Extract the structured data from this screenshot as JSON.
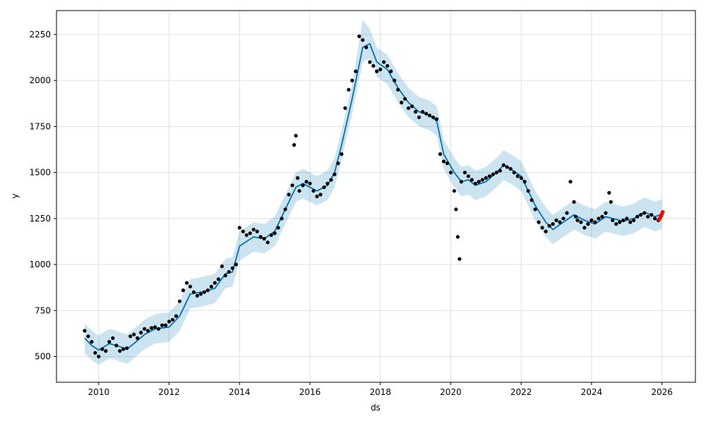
{
  "chart_data": {
    "type": "line",
    "title": "",
    "xlabel": "ds",
    "ylabel": "y",
    "xlim": [
      2008.8,
      2026.95
    ],
    "ylim": [
      360,
      2380
    ],
    "x_ticks": [
      2010,
      2012,
      2014,
      2016,
      2018,
      2020,
      2022,
      2024,
      2026
    ],
    "y_ticks": [
      500,
      750,
      1000,
      1250,
      1500,
      1750,
      2000,
      2250
    ],
    "grid": true,
    "colors": {
      "forecast": "#0072B2",
      "uncertainty_band": "#0072B2",
      "observed": "#000000",
      "new_points": "#ff0000"
    },
    "series": [
      {
        "kind": "forecast_line",
        "x": [
          2009.6,
          2009.8,
          2010.0,
          2010.3,
          2010.5,
          2010.8,
          2011.0,
          2011.3,
          2011.6,
          2012.0,
          2012.3,
          2012.6,
          2012.9,
          2013.3,
          2013.6,
          2013.8,
          2014.0,
          2014.4,
          2014.7,
          2015.0,
          2015.3,
          2015.6,
          2015.8,
          2016.2,
          2016.5,
          2016.7,
          2016.9,
          2017.2,
          2017.5,
          2017.7,
          2017.9,
          2018.2,
          2018.5,
          2018.8,
          2019.1,
          2019.4,
          2019.6,
          2019.8,
          2020.1,
          2020.3,
          2020.5,
          2020.7,
          2021.0,
          2021.3,
          2021.5,
          2021.7,
          2022.0,
          2022.2,
          2022.4,
          2022.7,
          2022.9,
          2023.2,
          2023.5,
          2023.8,
          2024.1,
          2024.4,
          2024.6,
          2024.9,
          2025.2,
          2025.5,
          2025.8,
          2026.0
        ],
        "y": [
          600,
          560,
          535,
          570,
          560,
          540,
          570,
          620,
          650,
          660,
          720,
          840,
          850,
          870,
          950,
          960,
          1100,
          1150,
          1140,
          1180,
          1300,
          1420,
          1440,
          1400,
          1430,
          1500,
          1650,
          1900,
          2180,
          2200,
          2100,
          2060,
          1960,
          1880,
          1830,
          1810,
          1780,
          1600,
          1500,
          1450,
          1460,
          1430,
          1450,
          1500,
          1540,
          1520,
          1480,
          1400,
          1320,
          1230,
          1190,
          1230,
          1270,
          1240,
          1220,
          1260,
          1250,
          1235,
          1250,
          1285,
          1260,
          1275
        ]
      },
      {
        "kind": "uncertainty_upper",
        "x": [
          2009.6,
          2009.8,
          2010.0,
          2010.3,
          2010.5,
          2010.8,
          2011.0,
          2011.3,
          2011.6,
          2012.0,
          2012.3,
          2012.6,
          2012.9,
          2013.3,
          2013.6,
          2013.8,
          2014.0,
          2014.4,
          2014.7,
          2015.0,
          2015.3,
          2015.6,
          2015.8,
          2016.2,
          2016.5,
          2016.7,
          2016.9,
          2017.2,
          2017.5,
          2017.7,
          2017.9,
          2018.2,
          2018.5,
          2018.8,
          2019.1,
          2019.4,
          2019.6,
          2019.8,
          2020.1,
          2020.3,
          2020.5,
          2020.7,
          2021.0,
          2021.3,
          2021.5,
          2021.7,
          2022.0,
          2022.2,
          2022.4,
          2022.7,
          2022.9,
          2023.2,
          2023.5,
          2023.8,
          2024.1,
          2024.4,
          2024.6,
          2024.9,
          2025.2,
          2025.5,
          2025.8,
          2026.0
        ],
        "y": [
          680,
          640,
          615,
          650,
          640,
          620,
          650,
          700,
          730,
          740,
          800,
          920,
          930,
          950,
          1030,
          1040,
          1180,
          1230,
          1220,
          1260,
          1380,
          1500,
          1520,
          1480,
          1510,
          1580,
          1730,
          1980,
          2330,
          2280,
          2180,
          2140,
          2040,
          1960,
          1910,
          1890,
          1860,
          1680,
          1580,
          1530,
          1540,
          1510,
          1530,
          1580,
          1620,
          1600,
          1560,
          1480,
          1400,
          1310,
          1270,
          1310,
          1350,
          1320,
          1300,
          1340,
          1330,
          1315,
          1330,
          1365,
          1340,
          1355
        ]
      },
      {
        "kind": "uncertainty_lower",
        "x": [
          2009.6,
          2009.8,
          2010.0,
          2010.3,
          2010.5,
          2010.8,
          2011.0,
          2011.3,
          2011.6,
          2012.0,
          2012.3,
          2012.6,
          2012.9,
          2013.3,
          2013.6,
          2013.8,
          2014.0,
          2014.4,
          2014.7,
          2015.0,
          2015.3,
          2015.6,
          2015.8,
          2016.2,
          2016.5,
          2016.7,
          2016.9,
          2017.2,
          2017.5,
          2017.7,
          2017.9,
          2018.2,
          2018.5,
          2018.8,
          2019.1,
          2019.4,
          2019.6,
          2019.8,
          2020.1,
          2020.3,
          2020.5,
          2020.7,
          2021.0,
          2021.3,
          2021.5,
          2021.7,
          2022.0,
          2022.2,
          2022.4,
          2022.7,
          2022.9,
          2023.2,
          2023.5,
          2023.8,
          2024.1,
          2024.4,
          2024.6,
          2024.9,
          2025.2,
          2025.5,
          2025.8,
          2026.0
        ],
        "y": [
          520,
          480,
          455,
          490,
          480,
          460,
          490,
          540,
          570,
          580,
          640,
          760,
          770,
          790,
          870,
          880,
          1020,
          1070,
          1060,
          1100,
          1220,
          1340,
          1360,
          1320,
          1350,
          1420,
          1570,
          1820,
          2100,
          2120,
          2020,
          1980,
          1880,
          1800,
          1750,
          1730,
          1700,
          1520,
          1420,
          1370,
          1380,
          1350,
          1370,
          1420,
          1460,
          1440,
          1400,
          1320,
          1240,
          1150,
          1110,
          1150,
          1190,
          1160,
          1140,
          1180,
          1170,
          1155,
          1170,
          1205,
          1180,
          1195
        ]
      },
      {
        "kind": "observed_points",
        "x": [
          2009.6,
          2009.7,
          2009.8,
          2009.9,
          2010.0,
          2010.1,
          2010.2,
          2010.3,
          2010.4,
          2010.5,
          2010.6,
          2010.7,
          2010.8,
          2010.9,
          2011.0,
          2011.1,
          2011.2,
          2011.3,
          2011.4,
          2011.5,
          2011.6,
          2011.7,
          2011.8,
          2011.9,
          2012.0,
          2012.1,
          2012.2,
          2012.3,
          2012.4,
          2012.5,
          2012.6,
          2012.7,
          2012.8,
          2012.9,
          2013.0,
          2013.1,
          2013.2,
          2013.3,
          2013.4,
          2013.5,
          2013.6,
          2013.7,
          2013.8,
          2013.9,
          2014.0,
          2014.1,
          2014.2,
          2014.3,
          2014.4,
          2014.5,
          2014.6,
          2014.7,
          2014.8,
          2014.9,
          2015.0,
          2015.1,
          2015.2,
          2015.3,
          2015.4,
          2015.5,
          2015.55,
          2015.6,
          2015.65,
          2015.7,
          2015.8,
          2015.9,
          2016.0,
          2016.1,
          2016.2,
          2016.3,
          2016.4,
          2016.5,
          2016.6,
          2016.7,
          2016.8,
          2016.9,
          2017.0,
          2017.1,
          2017.2,
          2017.3,
          2017.4,
          2017.5,
          2017.6,
          2017.7,
          2017.8,
          2017.9,
          2018.0,
          2018.1,
          2018.2,
          2018.3,
          2018.4,
          2018.5,
          2018.6,
          2018.7,
          2018.8,
          2018.9,
          2019.0,
          2019.1,
          2019.2,
          2019.3,
          2019.4,
          2019.5,
          2019.6,
          2019.7,
          2019.8,
          2019.9,
          2020.0,
          2020.1,
          2020.15,
          2020.2,
          2020.25,
          2020.3,
          2020.4,
          2020.5,
          2020.6,
          2020.7,
          2020.8,
          2020.9,
          2021.0,
          2021.1,
          2021.2,
          2021.3,
          2021.4,
          2021.5,
          2021.6,
          2021.7,
          2021.8,
          2021.9,
          2022.0,
          2022.1,
          2022.2,
          2022.3,
          2022.4,
          2022.5,
          2022.6,
          2022.7,
          2022.8,
          2022.9,
          2023.0,
          2023.1,
          2023.2,
          2023.3,
          2023.4,
          2023.5,
          2023.55,
          2023.6,
          2023.7,
          2023.8,
          2023.9,
          2024.0,
          2024.1,
          2024.2,
          2024.3,
          2024.4,
          2024.5,
          2024.55,
          2024.6,
          2024.7,
          2024.8,
          2024.9,
          2025.0,
          2025.1,
          2025.2,
          2025.3,
          2025.4,
          2025.5,
          2025.6,
          2025.7,
          2025.8,
          2025.9
        ],
        "y": [
          640,
          610,
          580,
          520,
          500,
          540,
          530,
          580,
          600,
          560,
          530,
          540,
          545,
          610,
          620,
          600,
          630,
          650,
          640,
          655,
          660,
          650,
          670,
          670,
          690,
          700,
          720,
          800,
          860,
          900,
          880,
          850,
          830,
          840,
          850,
          860,
          880,
          900,
          920,
          990,
          940,
          960,
          980,
          1000,
          1200,
          1180,
          1160,
          1170,
          1190,
          1180,
          1150,
          1140,
          1120,
          1160,
          1170,
          1200,
          1250,
          1300,
          1380,
          1430,
          1650,
          1700,
          1470,
          1400,
          1430,
          1450,
          1440,
          1400,
          1370,
          1380,
          1420,
          1440,
          1460,
          1490,
          1550,
          1600,
          1850,
          1950,
          2000,
          2050,
          2240,
          2220,
          2180,
          2100,
          2080,
          2050,
          2060,
          2100,
          2080,
          2050,
          2000,
          1950,
          1880,
          1900,
          1850,
          1860,
          1830,
          1800,
          1830,
          1820,
          1810,
          1800,
          1790,
          1600,
          1560,
          1550,
          1500,
          1400,
          1300,
          1150,
          1030,
          1450,
          1500,
          1480,
          1460,
          1440,
          1450,
          1460,
          1470,
          1480,
          1490,
          1500,
          1510,
          1540,
          1530,
          1520,
          1500,
          1480,
          1470,
          1450,
          1400,
          1350,
          1300,
          1230,
          1200,
          1180,
          1210,
          1220,
          1240,
          1230,
          1250,
          1280,
          1450,
          1340,
          1260,
          1240,
          1230,
          1200,
          1220,
          1240,
          1230,
          1250,
          1260,
          1280,
          1390,
          1340,
          1240,
          1220,
          1230,
          1240,
          1250,
          1230,
          1240,
          1260,
          1270,
          1280,
          1260,
          1270,
          1250,
          1240
        ]
      },
      {
        "kind": "new_points",
        "x": [
          2025.92,
          2025.95,
          2025.98,
          2026.0,
          2026.02
        ],
        "y": [
          1245,
          1255,
          1265,
          1275,
          1285
        ]
      }
    ]
  }
}
